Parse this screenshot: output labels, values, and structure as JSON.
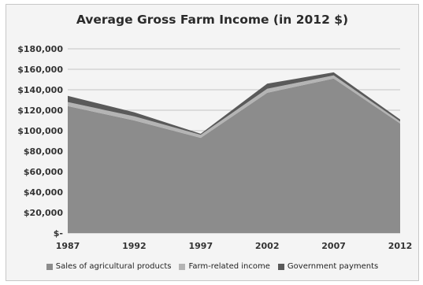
{
  "chart_data": {
    "type": "area",
    "stacked": true,
    "title": "Average Gross Farm Income (in 2012 $)",
    "xlabel": "",
    "ylabel": "",
    "categories": [
      "1987",
      "1992",
      "1997",
      "2002",
      "2007",
      "2012"
    ],
    "x_positions": [
      1987,
      1992,
      1997,
      2002,
      2007,
      2012
    ],
    "series": [
      {
        "name": "Sales of agricultural products",
        "values": [
          124000,
          110000,
          93000,
          137000,
          151000,
          107000
        ],
        "color": "#8c8c8c"
      },
      {
        "name": "Farm-related income",
        "values": [
          4000,
          4000,
          3000,
          4000,
          3000,
          2000
        ],
        "color": "#b4b4b4"
      },
      {
        "name": "Government payments",
        "values": [
          6000,
          4000,
          1000,
          5000,
          3000,
          2000
        ],
        "color": "#5a5a5a"
      }
    ],
    "ylim": [
      0,
      180000
    ],
    "yticks": [
      0,
      20000,
      40000,
      60000,
      80000,
      100000,
      120000,
      140000,
      160000,
      180000
    ],
    "ytick_labels": [
      "$-",
      "$20,000",
      "$40,000",
      "$60,000",
      "$80,000",
      "$100,000",
      "$120,000",
      "$140,000",
      "$160,000",
      "$180,000"
    ],
    "grid": true,
    "legend_position": "bottom"
  }
}
